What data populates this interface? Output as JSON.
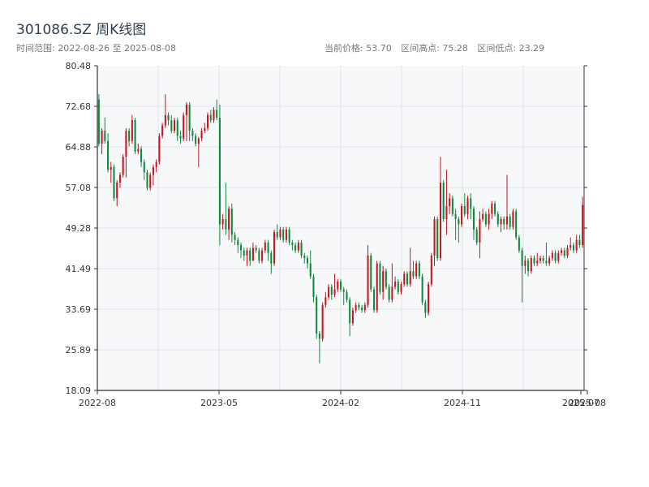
{
  "header": {
    "title": "301086.SZ 周K线图",
    "date_range": "时间范围: 2022-08-26 至 2025-08-08",
    "current_price": "当前价格: 53.70",
    "range_high": "区间高点: 75.28",
    "range_low": "区间低点: 23.29"
  },
  "colors": {
    "up": "#c8141e",
    "down": "#0e8a3c",
    "plot_bg": "#f7f8fa",
    "grid": "#e3e5ea",
    "axis": "#333333"
  },
  "chart_data": {
    "type": "candlestick",
    "title": "301086.SZ 周K线图",
    "y_ticks": [
      "18.09",
      "25.89",
      "33.69",
      "41.49",
      "49.28",
      "57.08",
      "64.88",
      "72.68",
      "80.48"
    ],
    "ylim": [
      18.09,
      80.48
    ],
    "x_ticks": [
      "2022-08",
      "2023-05",
      "2024-02",
      "2024-11",
      "2025-07",
      "2025-08"
    ],
    "grid": true,
    "candles": [
      [
        74.0,
        65.5,
        75.0,
        65.0
      ],
      [
        65.5,
        68.0,
        68.5,
        63.5
      ],
      [
        68.0,
        66.0,
        70.5,
        65.5
      ],
      [
        66.0,
        60.5,
        67.5,
        60.0
      ],
      [
        60.5,
        61.0,
        62.0,
        58.0
      ],
      [
        61.0,
        55.0,
        61.5,
        54.5
      ],
      [
        55.0,
        58.0,
        58.5,
        53.5
      ],
      [
        58.0,
        59.5,
        60.0,
        57.0
      ],
      [
        59.5,
        63.0,
        63.5,
        59.0
      ],
      [
        63.0,
        68.0,
        68.5,
        59.0
      ],
      [
        68.0,
        66.0,
        68.5,
        65.0
      ],
      [
        66.0,
        70.0,
        71.0,
        65.5
      ],
      [
        70.0,
        64.0,
        70.5,
        63.5
      ],
      [
        64.0,
        64.5,
        65.5,
        63.5
      ],
      [
        64.5,
        62.0,
        65.0,
        61.0
      ],
      [
        62.0,
        60.0,
        62.5,
        58.5
      ],
      [
        60.0,
        57.0,
        60.5,
        56.5
      ],
      [
        57.0,
        59.5,
        60.0,
        56.5
      ],
      [
        59.5,
        61.0,
        61.5,
        57.5
      ],
      [
        61.0,
        62.0,
        62.5,
        60.0
      ],
      [
        62.0,
        67.0,
        67.5,
        61.5
      ],
      [
        67.0,
        69.0,
        69.5,
        66.5
      ],
      [
        69.0,
        71.0,
        75.0,
        68.5
      ],
      [
        71.0,
        70.0,
        71.5,
        69.0
      ],
      [
        70.0,
        68.0,
        71.0,
        67.5
      ],
      [
        68.0,
        70.0,
        70.5,
        67.5
      ],
      [
        70.0,
        67.0,
        70.5,
        66.0
      ],
      [
        67.0,
        66.5,
        68.0,
        65.5
      ],
      [
        66.5,
        71.0,
        71.5,
        66.0
      ],
      [
        71.0,
        73.0,
        73.5,
        66.0
      ],
      [
        73.0,
        68.0,
        73.5,
        66.0
      ],
      [
        68.0,
        67.0,
        68.5,
        66.0
      ],
      [
        67.0,
        65.5,
        67.5,
        65.0
      ],
      [
        65.5,
        66.5,
        66.8,
        61.0
      ],
      [
        66.5,
        68.0,
        68.5,
        66.0
      ],
      [
        68.0,
        68.5,
        69.5,
        67.5
      ],
      [
        68.5,
        71.0,
        71.5,
        68.0
      ],
      [
        71.0,
        70.0,
        72.0,
        69.5
      ],
      [
        70.0,
        72.0,
        72.5,
        69.5
      ],
      [
        72.0,
        70.5,
        74.0,
        70.0
      ],
      [
        70.5,
        50.0,
        73.0,
        46.0
      ],
      [
        50.0,
        51.0,
        52.0,
        49.0
      ],
      [
        51.0,
        49.0,
        58.0,
        48.0
      ],
      [
        49.0,
        53.0,
        53.5,
        47.0
      ],
      [
        53.0,
        48.0,
        54.0,
        46.5
      ],
      [
        48.0,
        47.0,
        48.5,
        46.0
      ],
      [
        47.0,
        46.0,
        47.5,
        44.5
      ],
      [
        46.0,
        45.0,
        46.5,
        43.5
      ],
      [
        45.0,
        44.0,
        45.5,
        43.0
      ],
      [
        44.0,
        45.0,
        45.5,
        42.0
      ],
      [
        45.0,
        43.0,
        45.5,
        42.0
      ],
      [
        43.0,
        45.5,
        46.5,
        43.0
      ],
      [
        45.5,
        45.0,
        46.0,
        44.5
      ],
      [
        45.0,
        43.0,
        45.5,
        42.5
      ],
      [
        43.0,
        45.0,
        45.5,
        42.5
      ],
      [
        45.0,
        46.5,
        47.0,
        44.5
      ],
      [
        46.5,
        44.5,
        47.0,
        43.0
      ],
      [
        44.5,
        42.5,
        45.0,
        40.5
      ],
      [
        42.5,
        48.5,
        49.0,
        42.0
      ],
      [
        48.5,
        47.5,
        50.0,
        47.0
      ],
      [
        47.5,
        49.0,
        49.5,
        47.0
      ],
      [
        49.0,
        47.0,
        49.5,
        46.5
      ],
      [
        47.0,
        49.0,
        49.5,
        46.5
      ],
      [
        49.0,
        46.5,
        49.5,
        46.0
      ],
      [
        46.5,
        46.0,
        47.0,
        45.0
      ],
      [
        46.0,
        45.0,
        46.5,
        44.5
      ],
      [
        45.0,
        46.5,
        47.0,
        44.5
      ],
      [
        46.5,
        44.0,
        47.0,
        43.5
      ],
      [
        44.0,
        43.5,
        44.5,
        42.5
      ],
      [
        43.5,
        42.5,
        44.0,
        41.5
      ],
      [
        42.5,
        40.0,
        45.0,
        39.5
      ],
      [
        40.0,
        36.0,
        40.5,
        35.0
      ],
      [
        36.0,
        29.0,
        36.5,
        28.0
      ],
      [
        29.0,
        28.0,
        29.5,
        23.3
      ],
      [
        28.0,
        34.5,
        35.0,
        27.5
      ],
      [
        34.5,
        36.0,
        37.0,
        34.0
      ],
      [
        36.0,
        38.0,
        38.5,
        35.5
      ],
      [
        38.0,
        36.5,
        38.5,
        35.5
      ],
      [
        36.5,
        37.5,
        40.5,
        36.0
      ],
      [
        37.5,
        39.0,
        39.5,
        37.0
      ],
      [
        39.0,
        37.5,
        39.5,
        37.0
      ],
      [
        37.5,
        37.0,
        38.0,
        34.5
      ],
      [
        37.0,
        35.5,
        37.5,
        35.0
      ],
      [
        35.5,
        31.0,
        36.0,
        28.5
      ],
      [
        31.0,
        33.5,
        34.0,
        30.5
      ],
      [
        33.5,
        34.5,
        35.0,
        33.0
      ],
      [
        34.5,
        34.0,
        35.0,
        33.5
      ],
      [
        34.0,
        33.5,
        34.5,
        33.0
      ],
      [
        33.5,
        34.5,
        35.0,
        33.0
      ],
      [
        34.5,
        44.0,
        46.0,
        34.0
      ],
      [
        44.0,
        37.5,
        44.5,
        37.0
      ],
      [
        37.5,
        33.5,
        38.0,
        33.0
      ],
      [
        33.5,
        42.5,
        43.0,
        33.0
      ],
      [
        42.5,
        37.0,
        43.0,
        36.5
      ],
      [
        37.0,
        41.0,
        42.0,
        35.5
      ],
      [
        41.0,
        38.0,
        41.5,
        37.5
      ],
      [
        38.0,
        35.5,
        38.5,
        35.0
      ],
      [
        35.5,
        38.0,
        42.5,
        35.0
      ],
      [
        38.0,
        39.0,
        40.0,
        37.5
      ],
      [
        39.0,
        37.0,
        39.5,
        36.5
      ],
      [
        37.0,
        38.5,
        39.0,
        36.5
      ],
      [
        38.5,
        40.5,
        41.0,
        38.0
      ],
      [
        40.5,
        38.5,
        41.0,
        38.0
      ],
      [
        38.5,
        41.0,
        45.5,
        38.0
      ],
      [
        41.0,
        40.0,
        43.0,
        39.5
      ],
      [
        40.0,
        42.5,
        43.0,
        39.5
      ],
      [
        42.5,
        40.0,
        43.0,
        39.5
      ],
      [
        40.0,
        35.0,
        40.5,
        34.5
      ],
      [
        35.0,
        33.0,
        35.5,
        32.0
      ],
      [
        33.0,
        38.5,
        39.0,
        32.5
      ],
      [
        38.5,
        44.0,
        44.5,
        38.0
      ],
      [
        44.0,
        51.0,
        51.5,
        42.0
      ],
      [
        51.0,
        43.5,
        51.5,
        43.0
      ],
      [
        43.5,
        58.0,
        63.0,
        43.0
      ],
      [
        58.0,
        51.0,
        58.5,
        50.5
      ],
      [
        51.0,
        53.5,
        60.5,
        48.0
      ],
      [
        53.5,
        55.0,
        56.0,
        52.0
      ],
      [
        55.0,
        52.0,
        55.5,
        51.5
      ],
      [
        52.0,
        51.0,
        53.0,
        47.0
      ],
      [
        51.0,
        50.0,
        51.5,
        46.5
      ],
      [
        50.0,
        53.5,
        54.0,
        49.5
      ],
      [
        53.5,
        52.0,
        56.0,
        51.5
      ],
      [
        52.0,
        55.0,
        55.5,
        51.0
      ],
      [
        55.0,
        53.0,
        56.0,
        51.0
      ],
      [
        53.0,
        49.0,
        53.5,
        47.0
      ],
      [
        49.0,
        46.5,
        49.5,
        46.0
      ],
      [
        46.5,
        51.0,
        52.5,
        43.5
      ],
      [
        51.0,
        52.0,
        53.0,
        50.5
      ],
      [
        52.0,
        50.0,
        52.5,
        49.5
      ],
      [
        50.0,
        52.0,
        53.0,
        49.0
      ],
      [
        52.0,
        54.0,
        54.5,
        51.0
      ],
      [
        54.0,
        52.0,
        54.5,
        51.5
      ],
      [
        52.0,
        50.0,
        52.5,
        49.5
      ],
      [
        50.0,
        51.0,
        51.5,
        48.5
      ],
      [
        51.0,
        50.0,
        51.5,
        49.0
      ],
      [
        50.0,
        51.5,
        59.5,
        49.0
      ],
      [
        51.5,
        49.5,
        52.0,
        49.0
      ],
      [
        49.5,
        52.5,
        53.0,
        49.0
      ],
      [
        52.5,
        47.5,
        53.0,
        47.0
      ],
      [
        47.5,
        45.0,
        48.0,
        44.5
      ],
      [
        45.0,
        42.0,
        45.5,
        35.0
      ],
      [
        42.0,
        43.0,
        44.0,
        40.5
      ],
      [
        43.0,
        41.0,
        43.5,
        40.0
      ],
      [
        41.0,
        43.5,
        44.0,
        40.5
      ],
      [
        43.5,
        42.5,
        44.0,
        42.0
      ],
      [
        42.5,
        43.0,
        44.5,
        42.0
      ],
      [
        43.0,
        43.5,
        44.0,
        42.5
      ],
      [
        43.5,
        43.0,
        44.0,
        42.5
      ],
      [
        43.0,
        42.5,
        46.5,
        42.0
      ],
      [
        42.5,
        43.5,
        44.0,
        42.0
      ],
      [
        43.5,
        44.5,
        45.0,
        43.0
      ],
      [
        44.5,
        43.0,
        45.0,
        42.5
      ],
      [
        43.0,
        44.5,
        45.0,
        42.5
      ],
      [
        44.5,
        45.0,
        45.5,
        44.0
      ],
      [
        45.0,
        44.0,
        45.5,
        43.5
      ],
      [
        44.0,
        45.5,
        46.0,
        43.5
      ],
      [
        45.5,
        46.0,
        47.5,
        45.0
      ],
      [
        46.0,
        45.0,
        46.5,
        44.5
      ],
      [
        45.0,
        47.0,
        48.0,
        44.5
      ],
      [
        47.0,
        46.0,
        48.0,
        45.5
      ],
      [
        46.0,
        53.7,
        55.3,
        45.5
      ]
    ]
  }
}
